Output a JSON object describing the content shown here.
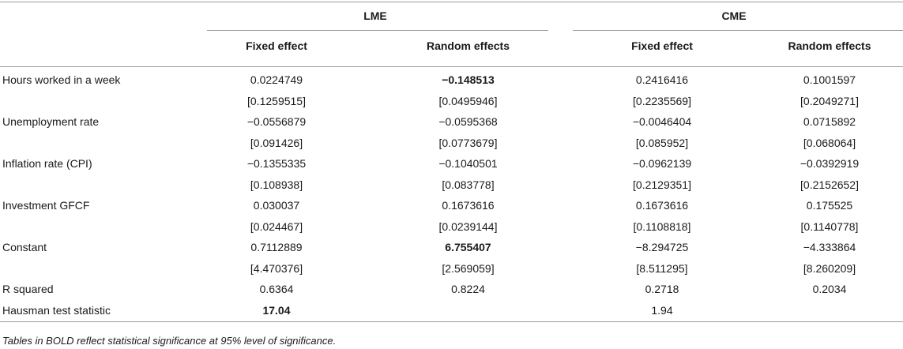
{
  "groups": [
    "LME",
    "CME"
  ],
  "columns": [
    "Fixed effect",
    "Random effects",
    "Fixed effect",
    "Random effects"
  ],
  "rows": [
    {
      "label": "Hours worked in a week",
      "values": [
        "0.0224749",
        "−0.148513",
        "0.2416416",
        "0.1001597"
      ],
      "bold": [
        false,
        true,
        false,
        false
      ]
    },
    {
      "label": "",
      "values": [
        "[0.1259515]",
        "[0.0495946]",
        "[0.2235569]",
        "[0.2049271]"
      ],
      "bold": [
        false,
        false,
        false,
        false
      ]
    },
    {
      "label": "Unemployment rate",
      "values": [
        "−0.0556879",
        "−0.0595368",
        "−0.0046404",
        "0.0715892"
      ],
      "bold": [
        false,
        false,
        false,
        false
      ]
    },
    {
      "label": "",
      "values": [
        "[0.091426]",
        "[0.0773679]",
        "[0.085952]",
        "[0.068064]"
      ],
      "bold": [
        false,
        false,
        false,
        false
      ]
    },
    {
      "label": "Inflation rate (CPI)",
      "values": [
        "−0.1355335",
        "−0.1040501",
        "−0.0962139",
        "−0.0392919"
      ],
      "bold": [
        false,
        false,
        false,
        false
      ]
    },
    {
      "label": "",
      "values": [
        "[0.108938]",
        "[0.083778]",
        "[0.2129351]",
        "[0.2152652]"
      ],
      "bold": [
        false,
        false,
        false,
        false
      ]
    },
    {
      "label": "Investment GFCF",
      "values": [
        "0.030037",
        "0.1673616",
        "0.1673616",
        "0.175525"
      ],
      "bold": [
        false,
        false,
        false,
        false
      ]
    },
    {
      "label": "",
      "values": [
        "[0.024467]",
        "[0.0239144]",
        "[0.1108818]",
        "[0.1140778]"
      ],
      "bold": [
        false,
        false,
        false,
        false
      ]
    },
    {
      "label": "Constant",
      "values": [
        "0.7112889",
        "6.755407",
        "−8.294725",
        "−4.333864"
      ],
      "bold": [
        false,
        true,
        false,
        false
      ]
    },
    {
      "label": "",
      "values": [
        "[4.470376]",
        "[2.569059]",
        "[8.511295]",
        "[8.260209]"
      ],
      "bold": [
        false,
        false,
        false,
        false
      ]
    },
    {
      "label": "R squared",
      "values": [
        "0.6364",
        "0.8224",
        "0.2718",
        "0.2034"
      ],
      "bold": [
        false,
        false,
        false,
        false
      ]
    },
    {
      "label": "Hausman test statistic",
      "values": [
        "17.04",
        "",
        "1.94",
        ""
      ],
      "bold": [
        true,
        false,
        false,
        false
      ]
    }
  ],
  "footnote": "Tables in BOLD reflect statistical significance at 95% level of significance."
}
